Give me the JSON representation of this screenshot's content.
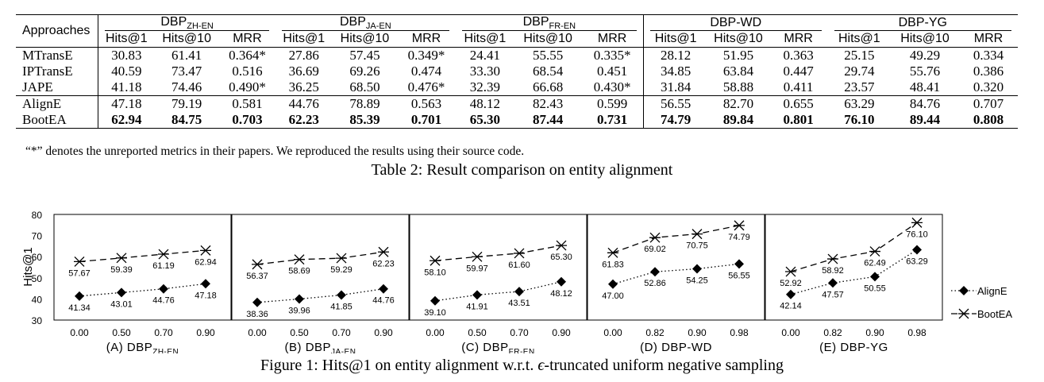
{
  "table": {
    "corner": "Approaches",
    "datasets": [
      {
        "base": "DBP",
        "sub": "ZH-EN"
      },
      {
        "base": "DBP",
        "sub": "JA-EN"
      },
      {
        "base": "DBP",
        "sub": "FR-EN"
      },
      {
        "base": "DBP-WD",
        "sub": ""
      },
      {
        "base": "DBP-YG",
        "sub": ""
      }
    ],
    "metrics": [
      "Hits@1",
      "Hits@10",
      "MRR"
    ],
    "rows": [
      {
        "name": "MTransE",
        "bold": false,
        "values": [
          "30.83",
          "61.41",
          "0.364*",
          "27.86",
          "57.45",
          "0.349*",
          "24.41",
          "55.55",
          "0.335*",
          "28.12",
          "51.95",
          "0.363",
          "25.15",
          "49.29",
          "0.334"
        ]
      },
      {
        "name": "IPTransE",
        "bold": false,
        "values": [
          "40.59",
          "73.47",
          "0.516",
          "36.69",
          "69.26",
          "0.474",
          "33.30",
          "68.54",
          "0.451",
          "34.85",
          "63.84",
          "0.447",
          "29.74",
          "55.76",
          "0.386"
        ]
      },
      {
        "name": "JAPE",
        "bold": false,
        "values": [
          "41.18",
          "74.46",
          "0.490*",
          "36.25",
          "68.50",
          "0.476*",
          "32.39",
          "66.68",
          "0.430*",
          "31.84",
          "58.88",
          "0.411",
          "23.57",
          "48.41",
          "0.320"
        ]
      },
      {
        "name": "AlignE",
        "bold": false,
        "values": [
          "47.18",
          "79.19",
          "0.581",
          "44.76",
          "78.89",
          "0.563",
          "48.12",
          "82.43",
          "0.599",
          "56.55",
          "82.70",
          "0.655",
          "63.29",
          "84.76",
          "0.707"
        ]
      },
      {
        "name": "BootEA",
        "bold": true,
        "values": [
          "62.94",
          "84.75",
          "0.703",
          "62.23",
          "85.39",
          "0.701",
          "65.30",
          "87.44",
          "0.731",
          "74.79",
          "89.84",
          "0.801",
          "76.10",
          "89.44",
          "0.808"
        ]
      }
    ],
    "footnote": "“*” denotes the unreported metrics in their papers. We reproduced the results using their source code.",
    "caption": "Table 2: Result comparison on entity alignment"
  },
  "figure": {
    "caption_prefix": "Figure 1: Hits@1 on entity alignment w.r.t. ",
    "caption_symbol": "ϵ",
    "caption_suffix": "-truncated uniform negative sampling",
    "ylabel": "Hits@1",
    "legend": [
      "AlignE",
      "BootEA"
    ]
  },
  "chart_data": {
    "type": "line",
    "ylabel": "Hits@1",
    "ylim": [
      30,
      80
    ],
    "yticks": [
      "30",
      "40",
      "50",
      "60",
      "70",
      "80"
    ],
    "panels": [
      {
        "label": "(A) DBP",
        "sub": "ZH-EN",
        "x": [
          "0.00",
          "0.50",
          "0.70",
          "0.90"
        ],
        "series": [
          {
            "name": "AlignE",
            "values": [
              41.34,
              43.01,
              44.76,
              47.18
            ],
            "labels": [
              "41.34",
              "43.01",
              "44.76",
              "47.18"
            ]
          },
          {
            "name": "BootEA",
            "values": [
              57.67,
              59.39,
              61.19,
              62.94
            ],
            "labels": [
              "57.67",
              "59.39",
              "61.19",
              "62.94"
            ]
          }
        ]
      },
      {
        "label": "(B) DBP",
        "sub": "JA-EN",
        "x": [
          "0.00",
          "0.50",
          "0.70",
          "0.90"
        ],
        "series": [
          {
            "name": "AlignE",
            "values": [
              38.36,
              39.96,
              41.85,
              44.76
            ],
            "labels": [
              "38.36",
              "39.96",
              "41.85",
              "44.76"
            ]
          },
          {
            "name": "BootEA",
            "values": [
              56.37,
              58.69,
              59.29,
              62.23
            ],
            "labels": [
              "56.37",
              "58.69",
              "59.29",
              "62.23"
            ]
          }
        ]
      },
      {
        "label": "(C) DBP",
        "sub": "FR-EN",
        "x": [
          "0.00",
          "0.50",
          "0.70",
          "0.90"
        ],
        "series": [
          {
            "name": "AlignE",
            "values": [
              39.1,
              41.91,
              43.51,
              48.12
            ],
            "labels": [
              "39.10",
              "41.91",
              "43.51",
              "48.12"
            ]
          },
          {
            "name": "BootEA",
            "values": [
              58.1,
              59.97,
              61.6,
              65.3
            ],
            "labels": [
              "58.10",
              "59.97",
              "61.60",
              "65.30"
            ]
          }
        ]
      },
      {
        "label": "(D) DBP-WD",
        "sub": "",
        "x": [
          "0.00",
          "0.82",
          "0.90",
          "0.98"
        ],
        "series": [
          {
            "name": "AlignE",
            "values": [
              47.0,
              52.86,
              54.25,
              56.55
            ],
            "labels": [
              "47.00",
              "52.86",
              "54.25",
              "56.55"
            ]
          },
          {
            "name": "BootEA",
            "values": [
              61.83,
              69.02,
              70.75,
              74.79
            ],
            "labels": [
              "61.83",
              "69.02",
              "70.75",
              "74.79"
            ]
          }
        ]
      },
      {
        "label": "(E) DBP-YG",
        "sub": "",
        "x": [
          "0.00",
          "0.82",
          "0.90",
          "0.98"
        ],
        "series": [
          {
            "name": "AlignE",
            "values": [
              42.14,
              47.57,
              50.55,
              63.29
            ],
            "labels": [
              "42.14",
              "47.57",
              "50.55",
              "63.29"
            ]
          },
          {
            "name": "BootEA",
            "values": [
              52.92,
              58.92,
              62.49,
              76.1
            ],
            "labels": [
              "52.92",
              "58.92",
              "62.49",
              "76.10"
            ]
          }
        ]
      }
    ]
  }
}
